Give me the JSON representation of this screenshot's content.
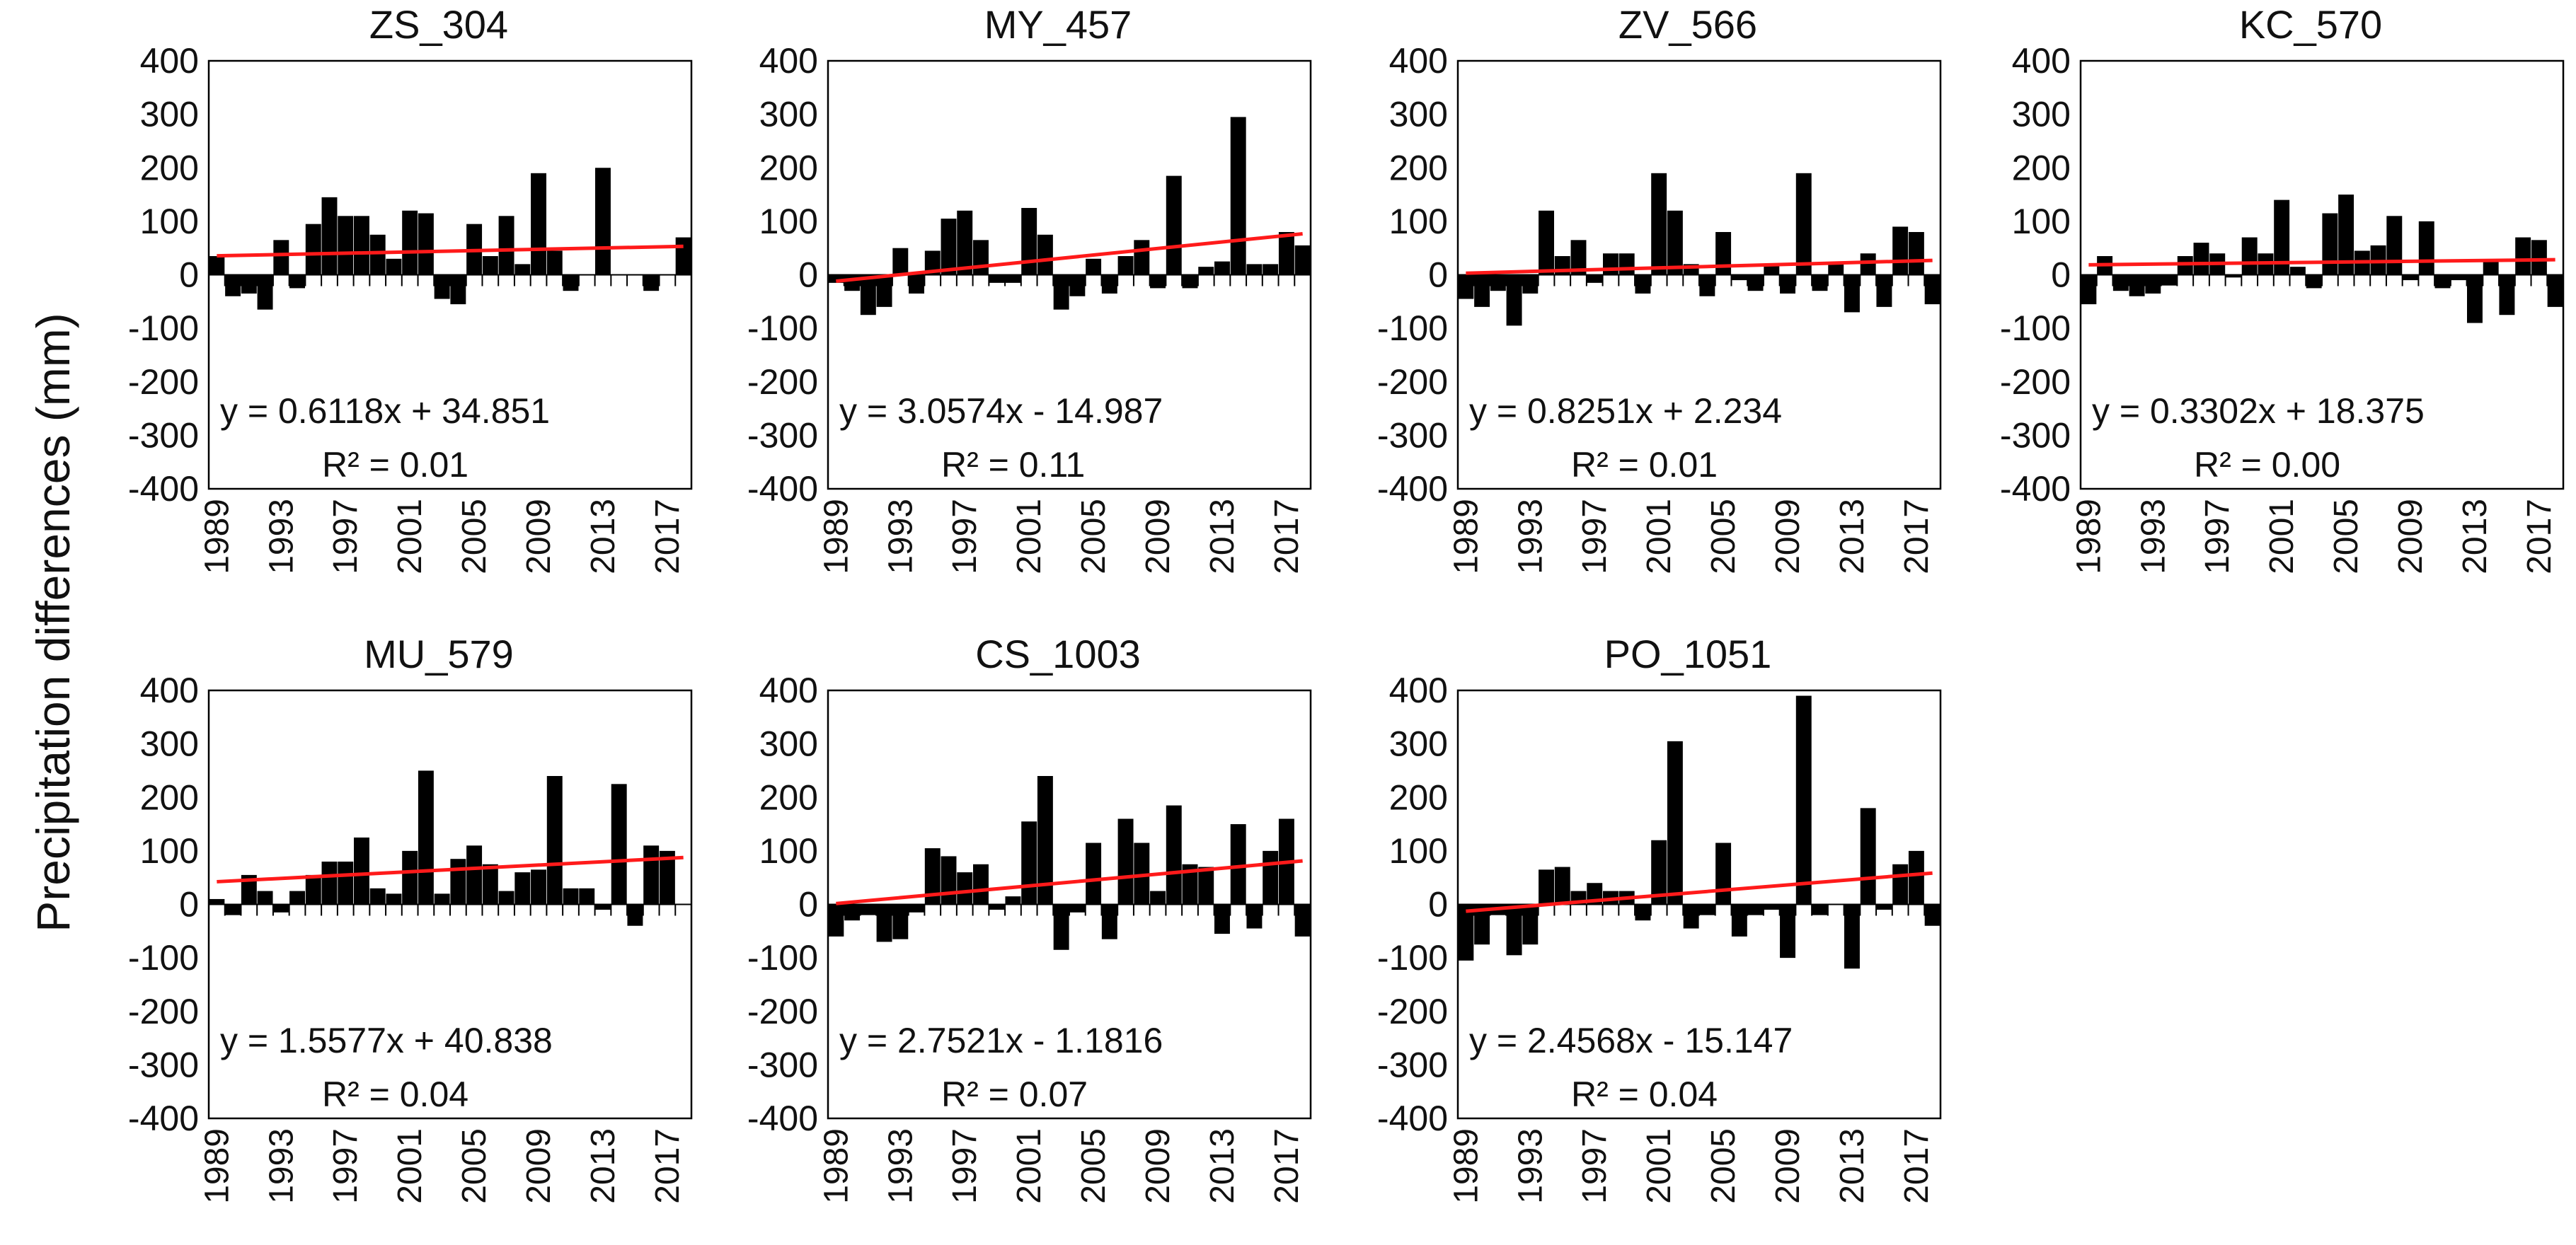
{
  "figure": {
    "ylabel": "Precipitation differences (mm)",
    "colors": {
      "bar": "#000000",
      "trend": "#ff1a1a",
      "frame": "#000000"
    }
  },
  "chart_data": [
    {
      "type": "bar",
      "title": "ZS_304",
      "x": [
        1989,
        1990,
        1991,
        1992,
        1993,
        1994,
        1995,
        1996,
        1997,
        1998,
        1999,
        2000,
        2001,
        2002,
        2003,
        2004,
        2005,
        2006,
        2007,
        2008,
        2009,
        2010,
        2011,
        2012,
        2013,
        2014,
        2015,
        2016,
        2017,
        2018
      ],
      "values": [
        35,
        -40,
        -35,
        -65,
        65,
        -25,
        95,
        145,
        110,
        110,
        75,
        30,
        120,
        115,
        -45,
        -55,
        95,
        35,
        110,
        20,
        190,
        45,
        -30,
        0,
        200,
        0,
        0,
        -30,
        0,
        70
      ],
      "xticks": [
        "1989",
        "1993",
        "1997",
        "2001",
        "2005",
        "2009",
        "2013",
        "2017"
      ],
      "yticks": [
        400,
        300,
        200,
        100,
        0,
        -100,
        -200,
        -300,
        -400
      ],
      "ylim": [
        -400,
        400
      ],
      "trend": {
        "slope": 0.6118,
        "intercept": 34.851
      },
      "equation": "y = 0.6118x + 34.851",
      "r2": "R² = 0.01"
    },
    {
      "type": "bar",
      "title": "MY_457",
      "x": [
        1989,
        1990,
        1991,
        1992,
        1993,
        1994,
        1995,
        1996,
        1997,
        1998,
        1999,
        2000,
        2001,
        2002,
        2003,
        2004,
        2005,
        2006,
        2007,
        2008,
        2009,
        2010,
        2011,
        2012,
        2013,
        2014,
        2015,
        2016,
        2017,
        2018
      ],
      "values": [
        -15,
        -30,
        -75,
        -60,
        50,
        -35,
        45,
        105,
        120,
        65,
        -15,
        -15,
        125,
        75,
        -65,
        -40,
        30,
        -35,
        35,
        65,
        -25,
        185,
        -25,
        15,
        25,
        295,
        20,
        20,
        80,
        55
      ],
      "xticks": [
        "1989",
        "1993",
        "1997",
        "2001",
        "2005",
        "2009",
        "2013",
        "2017"
      ],
      "yticks": [
        400,
        300,
        200,
        100,
        0,
        -100,
        -200,
        -300,
        -400
      ],
      "ylim": [
        -400,
        400
      ],
      "trend": {
        "slope": 3.0574,
        "intercept": -14.987
      },
      "equation": "y = 3.0574x - 14.987",
      "r2": "R² = 0.11"
    },
    {
      "type": "bar",
      "title": "ZV_566",
      "x": [
        1989,
        1990,
        1991,
        1992,
        1993,
        1994,
        1995,
        1996,
        1997,
        1998,
        1999,
        2000,
        2001,
        2002,
        2003,
        2004,
        2005,
        2006,
        2007,
        2008,
        2009,
        2010,
        2011,
        2012,
        2013,
        2014,
        2015,
        2016,
        2017,
        2018
      ],
      "values": [
        -45,
        -60,
        -30,
        -95,
        -35,
        120,
        35,
        65,
        -15,
        40,
        40,
        -35,
        190,
        120,
        20,
        -40,
        80,
        -10,
        -30,
        20,
        -35,
        190,
        -30,
        20,
        -70,
        40,
        -60,
        90,
        80,
        -55
      ],
      "xticks": [
        "1989",
        "1993",
        "1997",
        "2001",
        "2005",
        "2009",
        "2013",
        "2017"
      ],
      "yticks": [
        400,
        300,
        200,
        100,
        0,
        -100,
        -200,
        -300,
        -400
      ],
      "ylim": [
        -400,
        400
      ],
      "trend": {
        "slope": 0.8251,
        "intercept": 2.234
      },
      "equation": "y = 0.8251x + 2.234",
      "r2": "R² = 0.01"
    },
    {
      "type": "bar",
      "title": "KC_570",
      "x": [
        1989,
        1990,
        1991,
        1992,
        1993,
        1994,
        1995,
        1996,
        1997,
        1998,
        1999,
        2000,
        2001,
        2002,
        2003,
        2004,
        2005,
        2006,
        2007,
        2008,
        2009,
        2010,
        2011,
        2012,
        2013,
        2014,
        2015,
        2016,
        2017,
        2018
      ],
      "values": [
        -55,
        35,
        -30,
        -40,
        -35,
        -20,
        35,
        60,
        40,
        -5,
        70,
        40,
        140,
        15,
        -25,
        115,
        150,
        45,
        55,
        110,
        -10,
        100,
        -25,
        -10,
        -90,
        25,
        -75,
        70,
        65,
        -60
      ],
      "xticks": [
        "1989",
        "1993",
        "1997",
        "2001",
        "2005",
        "2009",
        "2013",
        "2017"
      ],
      "yticks": [
        400,
        300,
        200,
        100,
        0,
        -100,
        -200,
        -300,
        -400
      ],
      "ylim": [
        -400,
        400
      ],
      "trend": {
        "slope": 0.3302,
        "intercept": 18.375
      },
      "equation": "y = 0.3302x + 18.375",
      "r2": "R² = 0.00"
    },
    {
      "type": "bar",
      "title": "MU_579",
      "x": [
        1989,
        1990,
        1991,
        1992,
        1993,
        1994,
        1995,
        1996,
        1997,
        1998,
        1999,
        2000,
        2001,
        2002,
        2003,
        2004,
        2005,
        2006,
        2007,
        2008,
        2009,
        2010,
        2011,
        2012,
        2013,
        2014,
        2015,
        2016,
        2017,
        2018
      ],
      "values": [
        10,
        -20,
        55,
        25,
        -15,
        25,
        55,
        80,
        80,
        125,
        30,
        20,
        100,
        250,
        20,
        85,
        110,
        75,
        25,
        60,
        65,
        240,
        30,
        30,
        -10,
        225,
        -40,
        110,
        100,
        0
      ],
      "xticks": [
        "1989",
        "1993",
        "1997",
        "2001",
        "2005",
        "2009",
        "2013",
        "2017"
      ],
      "yticks": [
        400,
        300,
        200,
        100,
        0,
        -100,
        -200,
        -300,
        -400
      ],
      "ylim": [
        -400,
        400
      ],
      "trend": {
        "slope": 1.5577,
        "intercept": 40.838
      },
      "equation": "y = 1.5577x + 40.838",
      "r2": "R² = 0.04"
    },
    {
      "type": "bar",
      "title": "CS_1003",
      "x": [
        1989,
        1990,
        1991,
        1992,
        1993,
        1994,
        1995,
        1996,
        1997,
        1998,
        1999,
        2000,
        2001,
        2002,
        2003,
        2004,
        2005,
        2006,
        2007,
        2008,
        2009,
        2010,
        2011,
        2012,
        2013,
        2014,
        2015,
        2016,
        2017,
        2018
      ],
      "values": [
        -60,
        -30,
        -20,
        -70,
        -65,
        -15,
        105,
        90,
        60,
        75,
        -10,
        15,
        155,
        240,
        -85,
        -15,
        115,
        -65,
        160,
        115,
        25,
        185,
        75,
        70,
        -55,
        150,
        -45,
        100,
        160,
        -60
      ],
      "xticks": [
        "1989",
        "1993",
        "1997",
        "2001",
        "2005",
        "2009",
        "2013",
        "2017"
      ],
      "yticks": [
        400,
        300,
        200,
        100,
        0,
        -100,
        -200,
        -300,
        -400
      ],
      "ylim": [
        -400,
        400
      ],
      "trend": {
        "slope": 2.7521,
        "intercept": -1.1816
      },
      "equation": "y = 2.7521x - 1.1816",
      "r2": "R² = 0.07"
    },
    {
      "type": "bar",
      "title": "PO_1051",
      "x": [
        1989,
        1990,
        1991,
        1992,
        1993,
        1994,
        1995,
        1996,
        1997,
        1998,
        1999,
        2000,
        2001,
        2002,
        2003,
        2004,
        2005,
        2006,
        2007,
        2008,
        2009,
        2010,
        2011,
        2012,
        2013,
        2014,
        2015,
        2016,
        2017,
        2018
      ],
      "values": [
        -105,
        -75,
        -20,
        -95,
        -75,
        65,
        70,
        25,
        40,
        25,
        25,
        -30,
        120,
        305,
        -45,
        -20,
        115,
        -60,
        -20,
        -10,
        -100,
        390,
        -20,
        0,
        -120,
        180,
        -10,
        75,
        100,
        -40
      ],
      "xticks": [
        "1989",
        "1993",
        "1997",
        "2001",
        "2005",
        "2009",
        "2013",
        "2017"
      ],
      "yticks": [
        400,
        300,
        200,
        100,
        0,
        -100,
        -200,
        -300,
        -400
      ],
      "ylim": [
        -400,
        400
      ],
      "trend": {
        "slope": 2.4568,
        "intercept": -15.147
      },
      "equation": "y = 2.4568x - 15.147",
      "r2": "R² = 0.04"
    }
  ]
}
